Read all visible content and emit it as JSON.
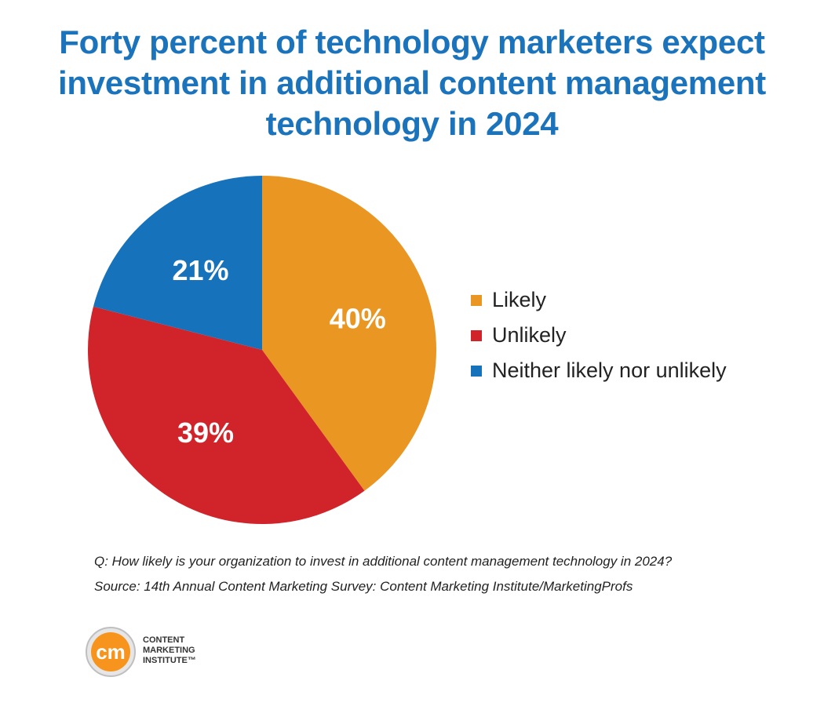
{
  "title": "Forty percent of technology marketers expect investment in additional content management technology in 2024",
  "chart_data": {
    "type": "pie",
    "title": "Forty percent of technology marketers expect investment in additional content management technology in 2024",
    "categories": [
      "Likely",
      "Unlikely",
      "Neither likely nor unlikely"
    ],
    "values": [
      40,
      39,
      21
    ],
    "labels": [
      "40%",
      "39%",
      "21%"
    ],
    "colors": [
      "#e99622",
      "#d1232a",
      "#1672ba"
    ],
    "legend_position": "right"
  },
  "legend": [
    {
      "label": "Likely",
      "color": "#e99622"
    },
    {
      "label": "Unlikely",
      "color": "#d1232a"
    },
    {
      "label": "Neither likely nor unlikely",
      "color": "#1672ba"
    }
  ],
  "footnote": {
    "question": "Q: How likely is your organization to invest in additional content management technology in 2024?",
    "source": "Source: 14th Annual Content Marketing Survey: Content Marketing Institute/MarketingProfs"
  },
  "logo": {
    "mark": "cm",
    "line1": "CONTENT",
    "line2": "MARKETING",
    "line3": "INSTITUTE™",
    "accent_color": "#f7941d"
  }
}
